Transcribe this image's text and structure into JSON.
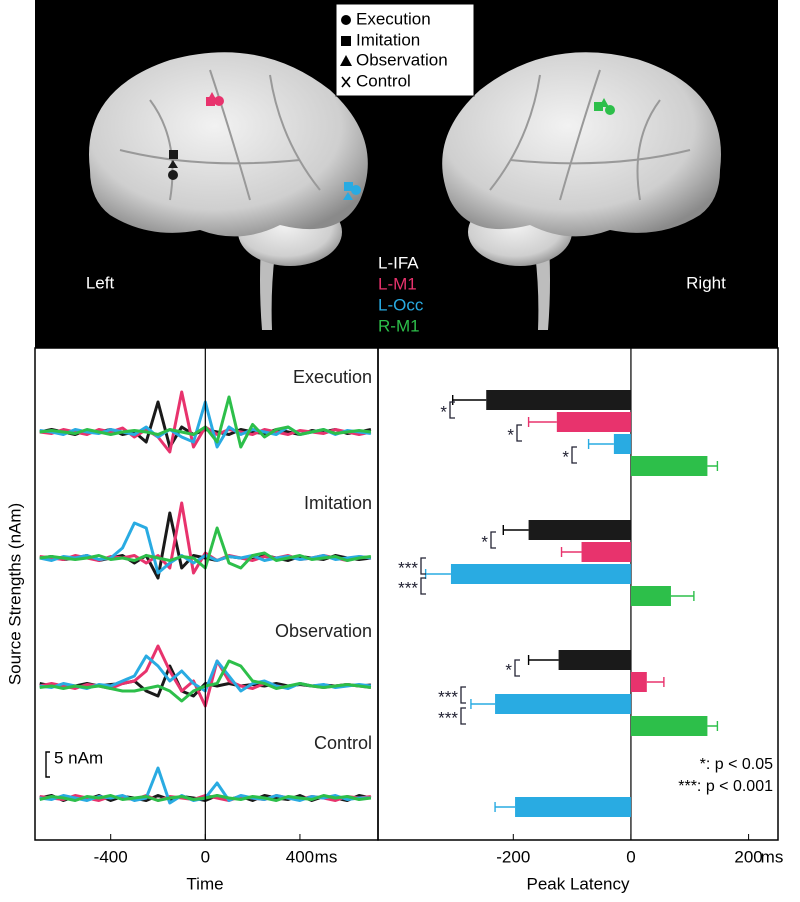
{
  "figure": {
    "conditions_legend": [
      "Execution",
      "Imitation",
      "Observation",
      "Control"
    ],
    "left_label": "Left",
    "right_label": "Right"
  },
  "chart_data": [
    {
      "type": "line",
      "title": "Execution",
      "x": [
        -700,
        -650,
        -600,
        -550,
        -500,
        -450,
        -400,
        -350,
        -300,
        -250,
        -200,
        -150,
        -100,
        -50,
        0,
        50,
        100,
        150,
        200,
        250,
        300,
        350,
        400,
        450,
        500,
        550,
        600,
        650,
        700
      ],
      "xlim": [
        -720,
        730
      ],
      "ylim": [
        -6,
        12
      ],
      "series": [
        {
          "color": "#1a1a1a",
          "values": [
            0,
            0.5,
            0,
            -0.5,
            0.3,
            0,
            0.5,
            -0.5,
            0,
            -2,
            6,
            -3,
            1,
            -0.5,
            0.5,
            0,
            -0.5,
            0.5,
            0,
            -0.3,
            0.5,
            0,
            -0.5,
            0.3,
            0,
            0.5,
            -0.3,
            0,
            0.5
          ]
        },
        {
          "color": "#e8336d",
          "values": [
            0,
            -0.3,
            0.5,
            0,
            -0.5,
            0.5,
            0,
            0.8,
            -1,
            0.5,
            -1,
            -4,
            8,
            -3,
            1,
            -0.5,
            0.5,
            0,
            -0.5,
            0.5,
            0,
            -0.5,
            0.3,
            0,
            -0.3,
            0.5,
            0,
            -0.5,
            0
          ]
        },
        {
          "color": "#29abe2",
          "values": [
            0.3,
            0,
            -0.5,
            0.5,
            0,
            -0.3,
            0.5,
            0,
            -0.5,
            1,
            -1,
            0.5,
            -1,
            -2,
            6,
            -3,
            1,
            -0.5,
            0.5,
            0,
            -0.5,
            1,
            -0.5,
            0,
            0.5,
            -0.5,
            0.3,
            0,
            -0.3
          ]
        },
        {
          "color": "#2dbf4a",
          "values": [
            0,
            0.3,
            0,
            -0.3,
            0.5,
            0,
            -0.5,
            0,
            0.3,
            0,
            -0.5,
            0.5,
            0,
            -0.5,
            1,
            -2,
            7,
            -3,
            1.5,
            -1,
            0.5,
            1,
            -0.5,
            0,
            0.5,
            -0.3,
            0,
            0.3,
            0
          ]
        }
      ]
    },
    {
      "type": "line",
      "title": "Imitation",
      "x": [
        -700,
        -650,
        -600,
        -550,
        -500,
        -450,
        -400,
        -350,
        -300,
        -250,
        -200,
        -150,
        -100,
        -50,
        0,
        50,
        100,
        150,
        200,
        250,
        300,
        350,
        400,
        450,
        500,
        550,
        600,
        650,
        700
      ],
      "xlim": [
        -720,
        730
      ],
      "ylim": [
        -6,
        12
      ],
      "series": [
        {
          "color": "#1a1a1a",
          "values": [
            0,
            0.3,
            -0.3,
            0,
            0.5,
            -0.5,
            0,
            0.5,
            -1,
            0.5,
            -4,
            9,
            -2,
            0.5,
            0,
            -0.5,
            0.3,
            0,
            -0.3,
            0.5,
            0,
            -0.5,
            0.3,
            0,
            -0.3,
            0.5,
            0,
            -0.3,
            0
          ]
        },
        {
          "color": "#e8336d",
          "values": [
            0.3,
            0,
            -0.3,
            0.5,
            0,
            -0.5,
            0.3,
            0,
            0.5,
            -1,
            0.5,
            -2,
            11,
            -3,
            1,
            -0.5,
            0.5,
            0,
            -0.5,
            0.3,
            0,
            0.5,
            -0.3,
            0,
            0.5,
            0,
            -0.5,
            0.3,
            0
          ]
        },
        {
          "color": "#29abe2",
          "values": [
            0,
            -0.5,
            0.3,
            0,
            0.5,
            -0.3,
            0,
            2,
            7,
            6,
            -3,
            -1,
            0.5,
            -1,
            0.5,
            -0.5,
            0.3,
            0,
            0.5,
            -0.5,
            0,
            0.3,
            -0.3,
            0,
            0.5,
            -0.3,
            0,
            0.3,
            0
          ]
        },
        {
          "color": "#2dbf4a",
          "values": [
            0,
            0.3,
            0,
            -0.3,
            0,
            0.5,
            -0.3,
            0,
            -0.5,
            0.5,
            0,
            -0.5,
            0.3,
            0,
            -2,
            6,
            -1,
            -2,
            0.5,
            1,
            -0.5,
            0,
            0.5,
            -0.3,
            0,
            0.3,
            -0.5,
            0,
            0.3
          ]
        }
      ]
    },
    {
      "type": "line",
      "title": "Observation",
      "x": [
        -700,
        -650,
        -600,
        -550,
        -500,
        -450,
        -400,
        -350,
        -300,
        -250,
        -200,
        -150,
        -100,
        -50,
        0,
        50,
        100,
        150,
        200,
        250,
        300,
        350,
        400,
        450,
        500,
        550,
        600,
        650,
        700
      ],
      "xlim": [
        -720,
        730
      ],
      "ylim": [
        -6,
        12
      ],
      "series": [
        {
          "color": "#1a1a1a",
          "values": [
            0.5,
            0,
            0.3,
            0,
            0.5,
            0,
            0.3,
            0.5,
            1,
            -1,
            -2,
            4,
            -1,
            -2,
            0.5,
            0,
            0.5,
            0,
            0.3,
            0,
            0.5,
            0,
            0.3,
            0,
            0.2,
            0,
            0.3,
            0,
            0.2
          ]
        },
        {
          "color": "#e8336d",
          "values": [
            0,
            0.5,
            0,
            -0.5,
            0.3,
            0,
            -0.5,
            0.5,
            1,
            3,
            8,
            3,
            -1,
            1,
            -4,
            5,
            1,
            0,
            -0.5,
            0.5,
            0,
            -0.3,
            0.5,
            0,
            -0.3,
            0,
            0.3,
            0,
            -0.3
          ]
        },
        {
          "color": "#29abe2",
          "values": [
            0,
            -0.3,
            0.5,
            0,
            -0.5,
            0.3,
            0,
            1,
            2,
            6,
            4,
            1,
            3,
            0.5,
            -1,
            5,
            2,
            -1,
            0.5,
            1,
            0,
            -0.5,
            0.5,
            0,
            0.3,
            -0.3,
            0,
            0.3,
            0
          ]
        },
        {
          "color": "#2dbf4a",
          "values": [
            -0.3,
            0,
            -0.5,
            0,
            -0.3,
            0,
            -0.5,
            -1,
            -1,
            -0.5,
            0,
            -1,
            -3,
            -1,
            0,
            0.5,
            5,
            4,
            1,
            0.5,
            -0.5,
            0,
            0.5,
            0,
            -0.3,
            0,
            0.3,
            0,
            -0.3
          ]
        }
      ]
    },
    {
      "type": "line",
      "title": "Control",
      "x": [
        -700,
        -650,
        -600,
        -550,
        -500,
        -450,
        -400,
        -350,
        -300,
        -250,
        -200,
        -150,
        -100,
        -50,
        0,
        50,
        100,
        150,
        200,
        250,
        300,
        350,
        400,
        450,
        500,
        550,
        600,
        650,
        700
      ],
      "xlim": [
        -720,
        730
      ],
      "ylim": [
        -6,
        12
      ],
      "xticks": [
        -400,
        0,
        400
      ],
      "x_unit": "ms",
      "x_label": "Time",
      "y_label": "Source Strengths (nAm)",
      "scale_bar": {
        "value": 5,
        "label": "5 nAm"
      },
      "series": [
        {
          "color": "#1a1a1a",
          "values": [
            0,
            0.5,
            -0.5,
            0.3,
            -0.3,
            0.5,
            -0.5,
            0.3,
            0,
            -0.5,
            0.5,
            -0.3,
            0.3,
            0,
            -0.5,
            0.5,
            -0.3,
            0.3,
            -0.5,
            0.5,
            0,
            -0.3,
            0.5,
            -0.5,
            0.3,
            0,
            -0.5,
            0.5,
            0
          ]
        },
        {
          "color": "#e8336d",
          "values": [
            0.3,
            0,
            -0.3,
            0.5,
            0,
            -0.5,
            0.3,
            0,
            -0.3,
            0.5,
            -0.5,
            0.3,
            0,
            -0.3,
            0.5,
            0,
            -0.5,
            0.3,
            0,
            -0.3,
            0.5,
            0,
            -0.3,
            0.3,
            0,
            -0.5,
            0.3,
            0,
            0.3
          ]
        },
        {
          "color": "#29abe2",
          "values": [
            0,
            -0.3,
            0.5,
            0,
            -0.5,
            0.3,
            0,
            0.5,
            -0.5,
            0,
            6,
            -1,
            0.5,
            -0.5,
            0,
            3,
            -0.5,
            0.5,
            0,
            -0.3,
            0.5,
            0,
            -0.5,
            0.3,
            0,
            0.5,
            -0.3,
            0,
            0
          ]
        },
        {
          "color": "#2dbf4a",
          "values": [
            -0.3,
            0.3,
            0,
            -0.5,
            0.3,
            0,
            0.5,
            -0.3,
            0,
            0.3,
            -0.5,
            0,
            0.3,
            -0.3,
            0,
            0.5,
            0,
            -0.3,
            0.3,
            0,
            -0.5,
            0.3,
            0,
            -0.3,
            0.5,
            0,
            0.3,
            -0.3,
            0
          ]
        }
      ]
    },
    {
      "type": "hbar",
      "x_label": "Peak Latency",
      "x_unit": "ms",
      "xlim": [
        -430,
        250
      ],
      "xticks": [
        -200,
        0,
        200
      ],
      "series": [
        {
          "name": "L-IFA",
          "color": "#1a1a1a",
          "values": [
            -246,
            -174,
            -123,
            null
          ],
          "errors": [
            57,
            43,
            51,
            null
          ]
        },
        {
          "name": "L-M1",
          "color": "#e8336d",
          "values": [
            -126,
            -84,
            27,
            null
          ],
          "errors": [
            48,
            34,
            29,
            null
          ]
        },
        {
          "name": "L-Occ",
          "color": "#29abe2",
          "values": [
            -29,
            -306,
            -231,
            -197
          ],
          "errors": [
            43,
            43,
            41,
            34
          ]
        },
        {
          "name": "R-M1",
          "color": "#2dbf4a",
          "values": [
            130,
            68,
            130,
            null
          ],
          "errors": [
            17,
            39,
            17,
            null
          ]
        }
      ],
      "significance": [
        "*",
        "*",
        "*",
        "*",
        "***",
        "***",
        "*",
        "***",
        "***"
      ],
      "significance_legend": [
        "*: p < 0.05",
        "***: p < 0.001"
      ]
    }
  ]
}
